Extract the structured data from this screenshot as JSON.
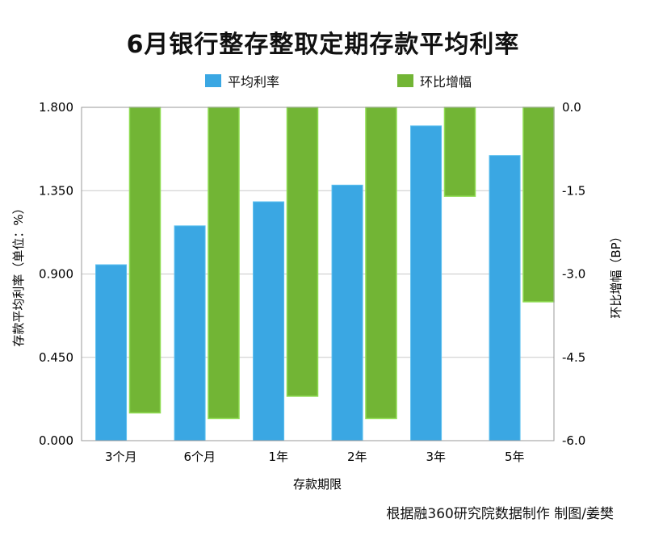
{
  "chart_data": {
    "type": "bar",
    "title": "6月银行整存整取定期存款平均利率",
    "xlabel": "存款期限",
    "categories": [
      "3个月",
      "6个月",
      "1年",
      "2年",
      "3年",
      "5年"
    ],
    "y_left": {
      "label": "存款平均利率（单位：%）",
      "ylim": [
        0.0,
        1.8
      ],
      "ticks": [
        "0.000",
        "0.450",
        "0.900",
        "1.350",
        "1.800"
      ],
      "tick_values": [
        0.0,
        0.45,
        0.9,
        1.35,
        1.8
      ]
    },
    "y_right": {
      "label": "环比增幅（BP）",
      "ylim": [
        -6.0,
        0.0
      ],
      "ticks": [
        "-6.0",
        "-4.5",
        "-3.0",
        "-1.5",
        "0.0"
      ],
      "tick_values": [
        -6.0,
        -4.5,
        -3.0,
        -1.5,
        0.0
      ]
    },
    "series": [
      {
        "name": "平均利率",
        "axis": "left",
        "color": "#3aa7e3",
        "values": [
          0.95,
          1.16,
          1.29,
          1.38,
          1.7,
          1.54
        ]
      },
      {
        "name": "环比增幅",
        "axis": "right",
        "color": "#72b535",
        "values": [
          -5.5,
          -5.6,
          -5.2,
          -5.6,
          -1.6,
          -3.5
        ]
      }
    ],
    "grid": "horizontal",
    "legend_position": "top"
  },
  "source_note": "根据融360研究院数据制作 制图/姜樊"
}
